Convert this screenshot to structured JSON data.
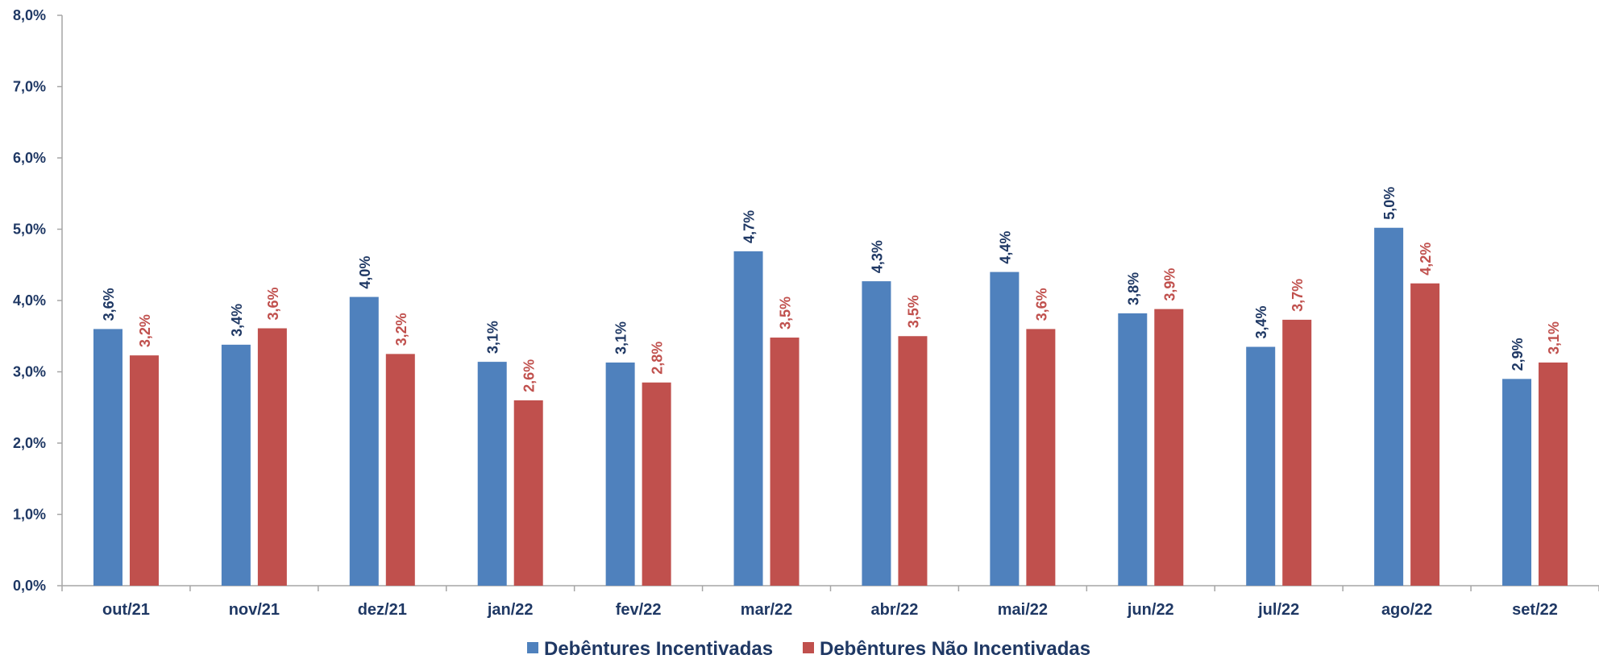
{
  "chart_data": {
    "type": "bar",
    "categories": [
      "out/21",
      "nov/21",
      "dez/21",
      "jan/22",
      "fev/22",
      "mar/22",
      "abr/22",
      "mai/22",
      "jun/22",
      "jul/22",
      "ago/22",
      "set/22"
    ],
    "series": [
      {
        "name": "Debêntures Incentivadas",
        "color": "#4f81bd",
        "label_color": "#1f3864",
        "values": [
          3.6,
          3.38,
          4.05,
          3.14,
          3.13,
          4.69,
          4.27,
          4.4,
          3.82,
          3.35,
          5.02,
          2.9
        ],
        "labels": [
          "3,6%",
          "3,4%",
          "4,0%",
          "3,1%",
          "3,1%",
          "4,7%",
          "4,3%",
          "4,4%",
          "3,8%",
          "3,4%",
          "5,0%",
          "2,9%"
        ]
      },
      {
        "name": "Debêntures Não Incentivadas",
        "color": "#c0504d",
        "label_color": "#c0504d",
        "values": [
          3.23,
          3.61,
          3.25,
          2.6,
          2.85,
          3.48,
          3.5,
          3.6,
          3.88,
          3.73,
          4.24,
          3.13
        ],
        "labels": [
          "3,2%",
          "3,6%",
          "3,2%",
          "2,6%",
          "2,8%",
          "3,5%",
          "3,5%",
          "3,6%",
          "3,9%",
          "3,7%",
          "4,2%",
          "3,1%"
        ]
      }
    ],
    "y_ticks": [
      "0,0%",
      "1,0%",
      "2,0%",
      "3,0%",
      "4,0%",
      "5,0%",
      "6,0%",
      "7,0%",
      "8,0%"
    ],
    "ylim": [
      0,
      8
    ],
    "grid": false,
    "legend_position": "bottom",
    "title": "",
    "xlabel": "",
    "ylabel": ""
  }
}
